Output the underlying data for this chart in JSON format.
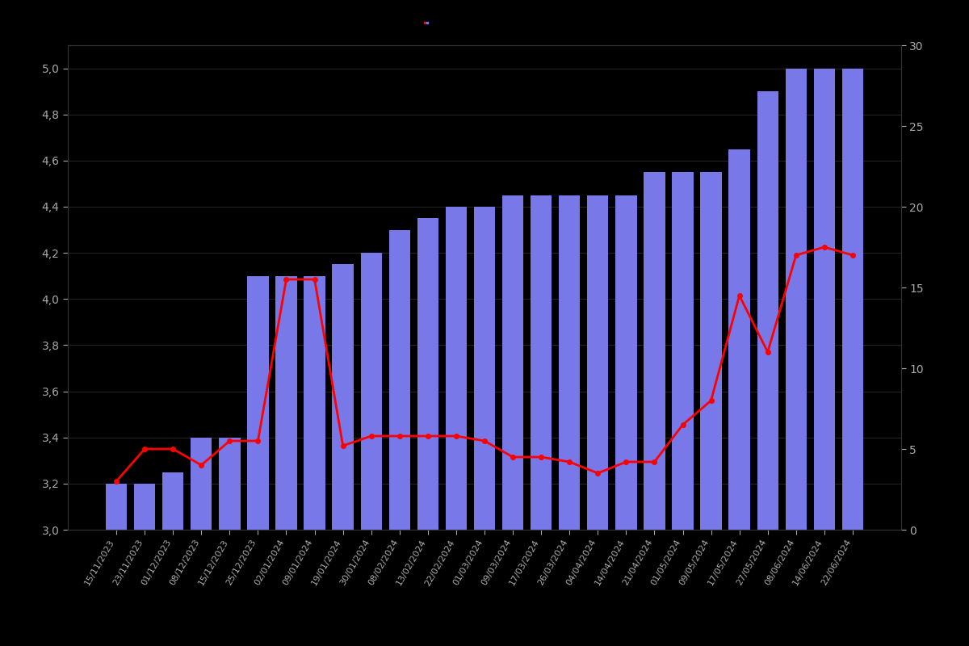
{
  "dates": [
    "15/11/2023",
    "23/11/2023",
    "01/12/2023",
    "08/12/2023",
    "15/12/2023",
    "25/12/2023",
    "02/01/2024",
    "09/01/2024",
    "19/01/2024",
    "30/01/2024",
    "08/02/2024",
    "13/02/2024",
    "22/02/2024",
    "01/03/2024",
    "09/03/2024",
    "17/03/2024",
    "26/03/2024",
    "04/04/2024",
    "14/04/2024",
    "21/04/2024",
    "01/05/2024",
    "09/05/2024",
    "17/05/2024",
    "27/05/2024",
    "08/06/2024",
    "14/06/2024",
    "22/06/2024"
  ],
  "bar_values": [
    3.2,
    3.2,
    3.25,
    3.4,
    3.4,
    4.1,
    4.1,
    4.1,
    4.15,
    4.2,
    4.3,
    4.35,
    4.4,
    4.4,
    4.45,
    4.45,
    4.45,
    4.45,
    4.45,
    4.55,
    4.55,
    4.55,
    4.65,
    4.9,
    5.0,
    5.0,
    5.0
  ],
  "line_values_right": [
    3.0,
    5.0,
    5.0,
    4.0,
    5.5,
    5.5,
    15.5,
    15.5,
    5.2,
    5.8,
    5.8,
    5.8,
    5.8,
    5.5,
    4.5,
    4.5,
    4.2,
    3.5,
    4.2,
    4.2,
    6.5,
    8.0,
    14.5,
    11.0,
    17.0,
    17.5,
    17.0
  ],
  "bar_color": "#7878e8",
  "line_color": "#ff0000",
  "background_color": "#000000",
  "text_color": "#aaaaaa",
  "grid_color": "#333333",
  "ylim_left": [
    3.0,
    5.1
  ],
  "ylim_right": [
    0,
    30
  ],
  "yticks_left": [
    3.0,
    3.2,
    3.4,
    3.6,
    3.8,
    4.0,
    4.2,
    4.4,
    4.6,
    4.8,
    5.0
  ],
  "yticks_right": [
    0,
    5,
    10,
    15,
    20,
    25,
    30
  ],
  "figsize": [
    12,
    8
  ],
  "dpi": 100
}
